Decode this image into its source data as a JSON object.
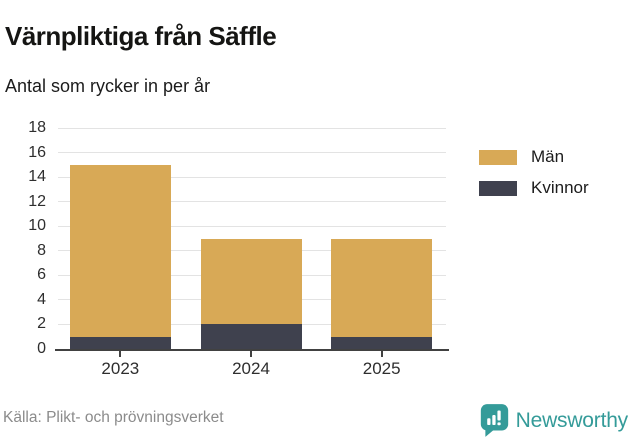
{
  "header": {
    "title": "Värnpliktiga från Säffle",
    "subtitle": "Antal som rycker in per år"
  },
  "chart_data": {
    "type": "bar",
    "stacked": true,
    "categories": [
      "2023",
      "2024",
      "2025"
    ],
    "series": [
      {
        "name": "Män",
        "color": "#d8a956",
        "values": [
          14,
          7,
          8
        ]
      },
      {
        "name": "Kvinnor",
        "color": "#3f414e",
        "values": [
          1,
          2,
          1
        ]
      }
    ],
    "totals": [
      15,
      9,
      9
    ],
    "title": "Värnpliktiga från Säffle",
    "subtitle": "Antal som rycker in per år",
    "xlabel": "",
    "ylabel": "",
    "ylim": [
      0,
      18
    ],
    "ytick_step": 2,
    "grid": true,
    "legend_position": "right-top"
  },
  "footer": {
    "source": "Källa: Plikt- och prövningsverket",
    "brand": "Newsworthy"
  },
  "colors": {
    "man": "#d8a956",
    "kvinnor": "#3f414e",
    "accent_teal": "#349b99",
    "grid": "#e3e3e3",
    "axis": "#414141",
    "muted_text": "#8b8b8b"
  }
}
